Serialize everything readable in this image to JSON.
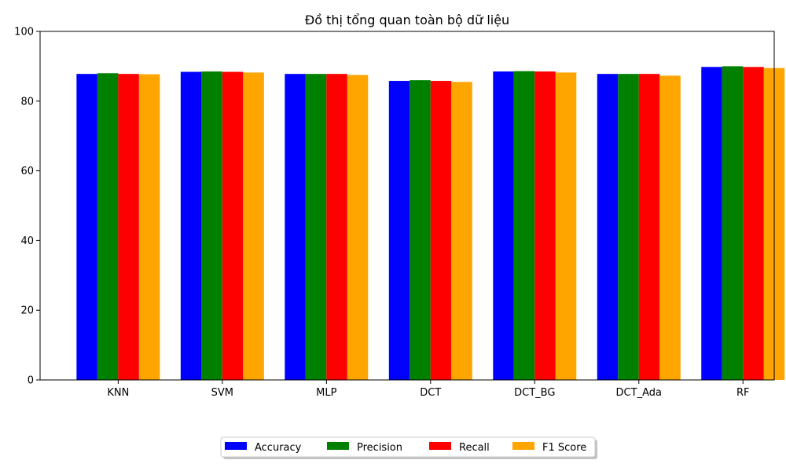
{
  "chart_data": {
    "type": "bar",
    "title": "Đồ thị tổng quan toàn bộ dữ liệu",
    "xlabel": "",
    "ylabel": "",
    "categories": [
      "KNN",
      "SVM",
      "MLP",
      "DCT",
      "DCT_BG",
      "DCT_Ada",
      "RF"
    ],
    "ylim": [
      0,
      100
    ],
    "yticks": [
      0,
      20,
      40,
      60,
      80,
      100
    ],
    "grid": false,
    "legend_position": "bottom-center",
    "series": [
      {
        "name": "Accuracy",
        "color": "#0000ff",
        "values": [
          87.8,
          88.4,
          87.8,
          85.8,
          88.5,
          87.8,
          89.8
        ]
      },
      {
        "name": "Precision",
        "color": "#008000",
        "values": [
          88.0,
          88.5,
          87.8,
          86.0,
          88.6,
          87.8,
          90.0
        ]
      },
      {
        "name": "Recall",
        "color": "#ff0000",
        "values": [
          87.8,
          88.4,
          87.8,
          85.8,
          88.5,
          87.8,
          89.8
        ]
      },
      {
        "name": "F1 Score",
        "color": "#ffa500",
        "values": [
          87.7,
          88.2,
          87.5,
          85.5,
          88.2,
          87.3,
          89.5
        ]
      }
    ]
  }
}
